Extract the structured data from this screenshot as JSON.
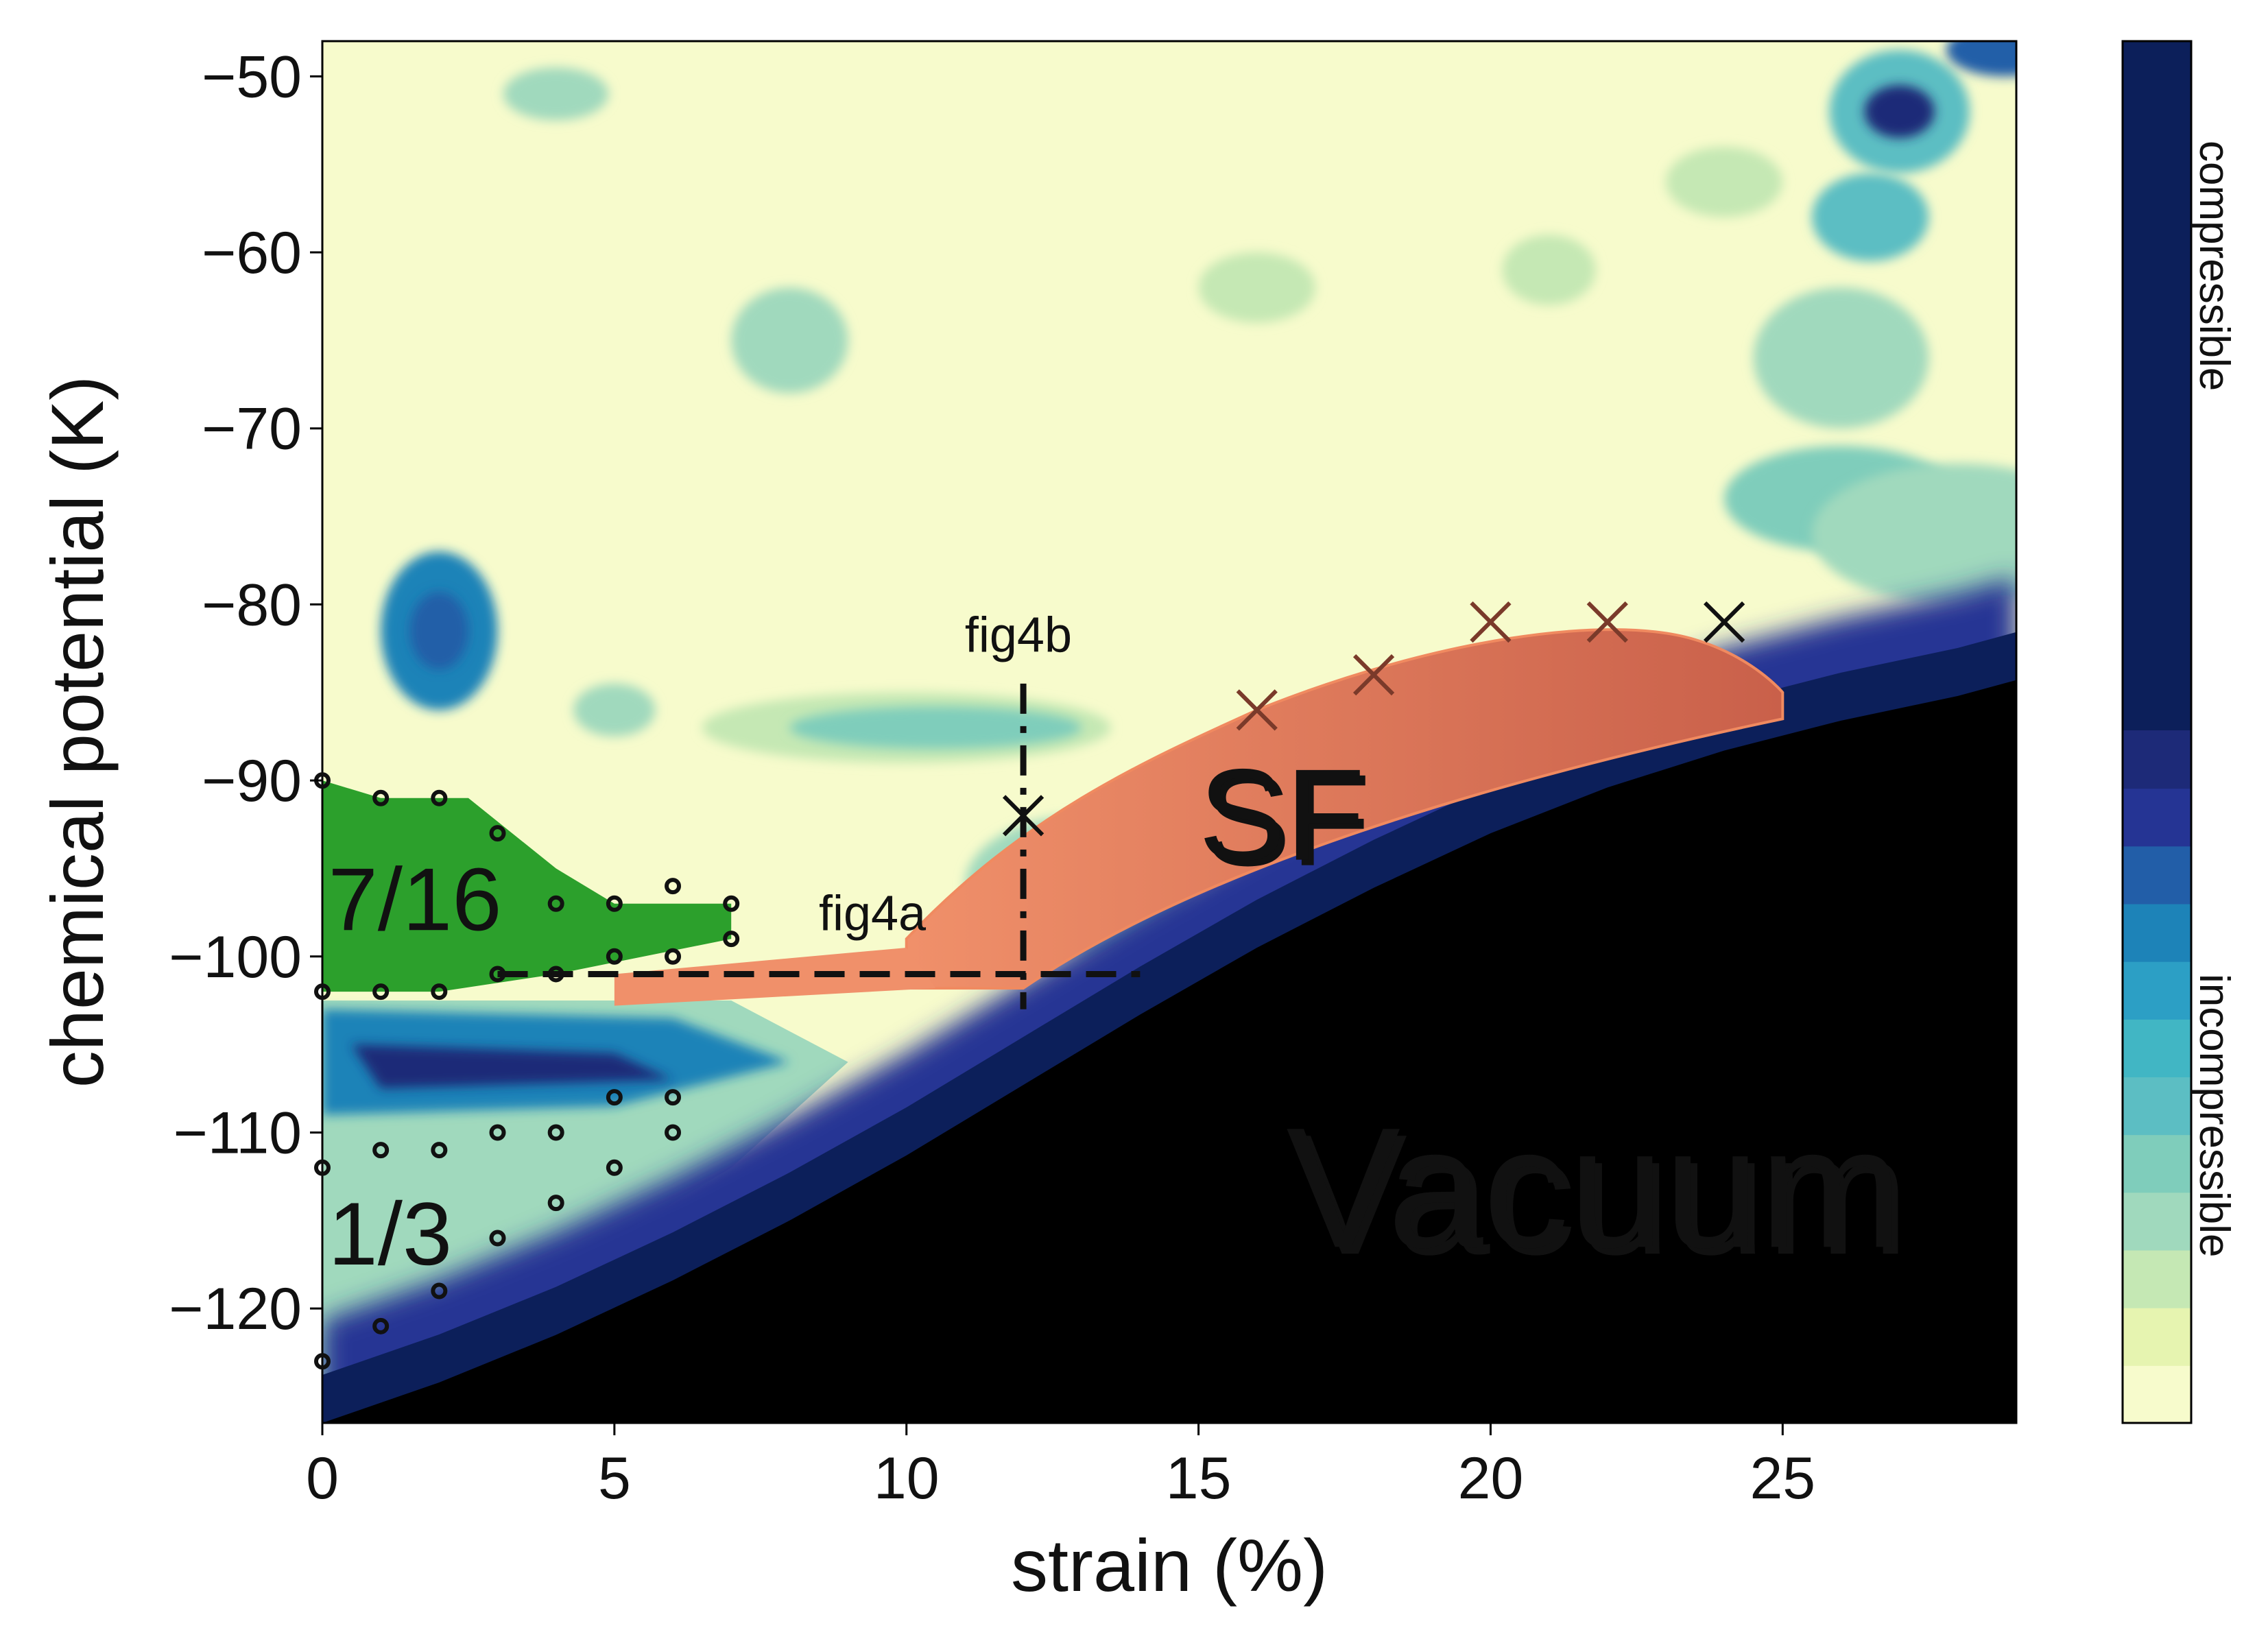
{
  "chart_data": {
    "type": "heatmap",
    "xlabel": "strain (%)",
    "ylabel": "chemical potential (K)",
    "xlim": [
      0,
      29
    ],
    "ylim": [
      -126.5,
      -48
    ],
    "xticks": [
      0,
      5,
      10,
      15,
      20,
      25
    ],
    "yticks": [
      -50,
      -60,
      -70,
      -80,
      -90,
      -100,
      -110,
      -120
    ],
    "xtick_labels": [
      "0",
      "5",
      "10",
      "15",
      "20",
      "25"
    ],
    "ytick_labels": [
      "−50",
      "−60",
      "−70",
      "−80",
      "−90",
      "−100",
      "−110",
      "−120"
    ],
    "colorbar": {
      "labels": {
        "top": "compressible",
        "bottom": "incompressible"
      },
      "colors": [
        "#f7fbcc",
        "#e6f4b0",
        "#c5e8b4",
        "#a0d9bd",
        "#7fcdbb",
        "#5cbec3",
        "#41b6c4",
        "#2c9fc5",
        "#1d83b8",
        "#225ea8",
        "#253494",
        "#1d2a78",
        "#0c1f5a"
      ]
    },
    "regions": {
      "filling_7_16": "7/16",
      "filling_1_3": "1/3",
      "superfluid": "SF",
      "vacuum": "Vacuum"
    },
    "cuts": {
      "horizontal": "fig4a",
      "vertical": "fig4b"
    },
    "vacuum_boundary": [
      [
        0.0,
        -126.5
      ],
      [
        2.0,
        -124.2
      ],
      [
        4.0,
        -121.5
      ],
      [
        6.0,
        -118.4
      ],
      [
        8.0,
        -115.0
      ],
      [
        10.0,
        -111.3
      ],
      [
        12.0,
        -107.3
      ],
      [
        14.0,
        -103.3
      ],
      [
        16.0,
        -99.5
      ],
      [
        18.0,
        -96.1
      ],
      [
        20.0,
        -93.0
      ],
      [
        22.0,
        -90.4
      ],
      [
        24.0,
        -88.3
      ],
      [
        26.0,
        -86.6
      ],
      [
        28.0,
        -85.2
      ],
      [
        29.0,
        -84.3
      ]
    ],
    "sf_boundary_points": [
      {
        "x": 12,
        "y": -92
      },
      {
        "x": 16,
        "y": -86
      },
      {
        "x": 18,
        "y": -84
      },
      {
        "x": 20,
        "y": -81
      },
      {
        "x": 22,
        "y": -81
      },
      {
        "x": 24,
        "y": -81
      }
    ],
    "sample_points_7_16": [
      {
        "x": 0,
        "y": -90
      },
      {
        "x": 1,
        "y": -91
      },
      {
        "x": 2,
        "y": -91
      },
      {
        "x": 3,
        "y": -93
      },
      {
        "x": 4,
        "y": -97
      },
      {
        "x": 5,
        "y": -97
      },
      {
        "x": 6,
        "y": -96
      },
      {
        "x": 7,
        "y": -97
      },
      {
        "x": 0,
        "y": -102
      },
      {
        "x": 1,
        "y": -102
      },
      {
        "x": 2,
        "y": -102
      },
      {
        "x": 3,
        "y": -101
      },
      {
        "x": 4,
        "y": -101
      },
      {
        "x": 5,
        "y": -100
      },
      {
        "x": 6,
        "y": -100
      },
      {
        "x": 7,
        "y": -99
      }
    ],
    "sample_points_1_3": [
      {
        "x": 0,
        "y": -112
      },
      {
        "x": 1,
        "y": -111
      },
      {
        "x": 2,
        "y": -111
      },
      {
        "x": 3,
        "y": -110
      },
      {
        "x": 4,
        "y": -110
      },
      {
        "x": 5,
        "y": -108
      },
      {
        "x": 6,
        "y": -108
      },
      {
        "x": 6,
        "y": -110
      },
      {
        "x": 5,
        "y": -112
      },
      {
        "x": 4,
        "y": -114
      },
      {
        "x": 3,
        "y": -116
      },
      {
        "x": 2,
        "y": -119
      },
      {
        "x": 1,
        "y": -121
      },
      {
        "x": 0,
        "y": -123
      }
    ]
  }
}
